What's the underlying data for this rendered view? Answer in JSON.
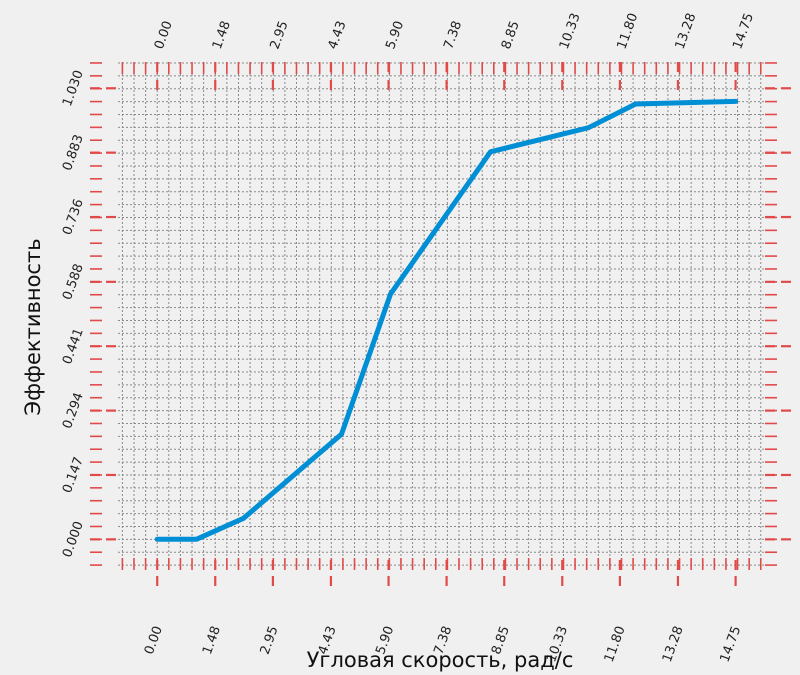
{
  "chart_data": {
    "type": "line",
    "xlabel": "Угловая скорость, рад/с",
    "ylabel": "Эффективность",
    "xlim": [
      -1.0,
      15.5
    ],
    "ylim": [
      -0.07,
      1.09
    ],
    "x_ticks": [
      "0.00",
      "1.48",
      "2.95",
      "4.43",
      "5.90",
      "7.38",
      "8.85",
      "10.33",
      "11.80",
      "13.28",
      "14.75"
    ],
    "y_ticks": [
      "0.000",
      "0.147",
      "0.294",
      "0.441",
      "0.588",
      "0.736",
      "0.883",
      "1.030"
    ],
    "grid": true,
    "series": [
      {
        "color": "#008fd5",
        "x": [
          0.0,
          1.0,
          2.2,
          4.7,
          5.95,
          8.5,
          11.0,
          12.2,
          14.75
        ],
        "y": [
          0.0,
          0.0,
          0.048,
          0.24,
          0.56,
          0.885,
          0.94,
          0.994,
          1.0
        ]
      }
    ]
  }
}
